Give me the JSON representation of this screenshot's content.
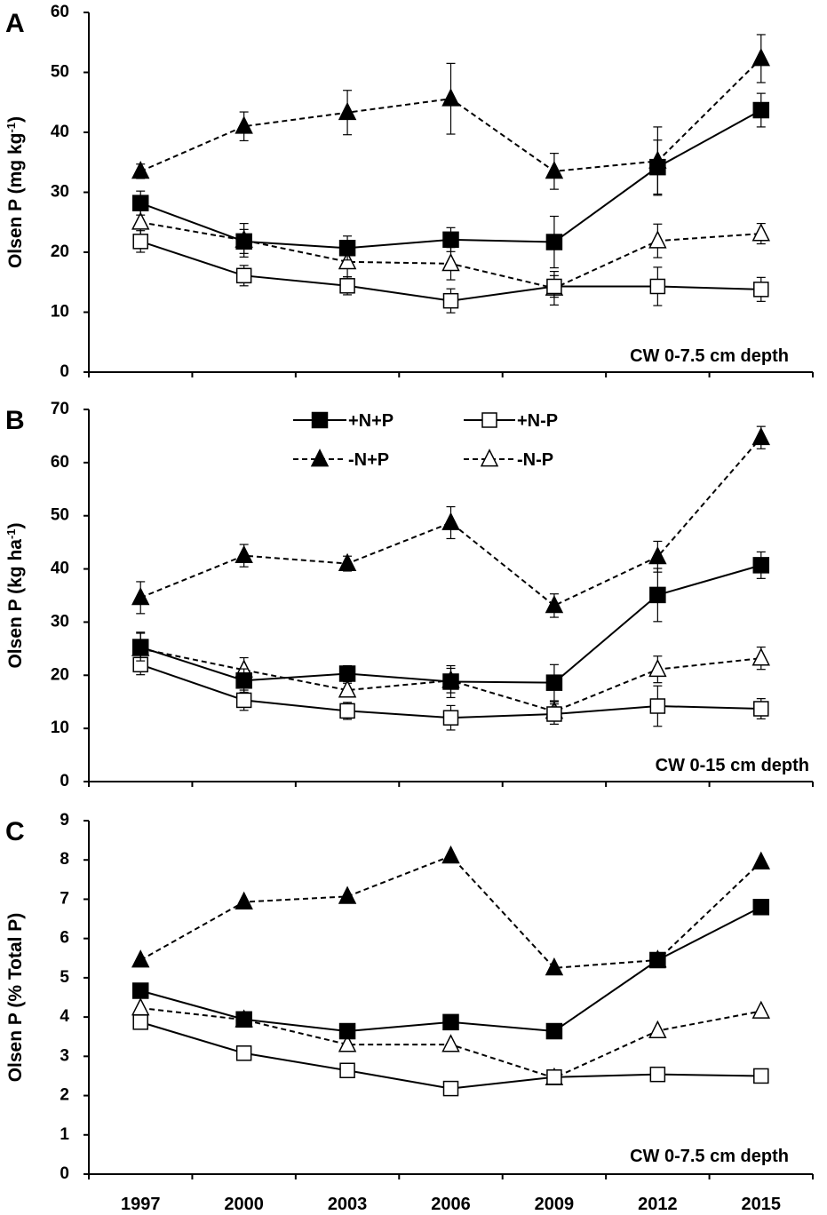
{
  "chart_data": {
    "type": "line",
    "x": [
      "1997",
      "2000",
      "2003",
      "2006",
      "2009",
      "2012",
      "2015"
    ],
    "legend": [
      {
        "key": "+N+P",
        "label": "+N+P",
        "marker": "square",
        "filled": true,
        "dashed": false
      },
      {
        "key": "+N-P",
        "label": "+N-P",
        "marker": "square",
        "filled": false,
        "dashed": false
      },
      {
        "key": "-N+P",
        "label": "-N+P",
        "marker": "triangle",
        "filled": true,
        "dashed": true
      },
      {
        "key": "-N-P",
        "label": "-N-P",
        "marker": "triangle",
        "filled": false,
        "dashed": true
      }
    ],
    "panels": [
      {
        "letter": "A",
        "ylabel_main": "Olsen P (mg kg",
        "ylabel_sup": "-1",
        "ylabel_end": ")",
        "ylim": [
          0,
          60
        ],
        "yticks": [
          "0",
          "10",
          "20",
          "30",
          "40",
          "50",
          "60"
        ],
        "annotation": "CW 0-7.5 cm depth",
        "show_legend": false,
        "series": [
          {
            "key": "+N+P",
            "values": [
              28.2,
              21.8,
              20.7,
              22.1,
              21.7,
              34.2,
              43.7
            ],
            "errors": [
              2.0,
              2.0,
              2.0,
              2.0,
              4.3,
              4.5,
              2.8
            ]
          },
          {
            "key": "+N-P",
            "values": [
              21.8,
              16.1,
              14.4,
              11.9,
              14.3,
              14.3,
              13.8
            ],
            "errors": [
              1.8,
              1.7,
              1.5,
              2.0,
              1.8,
              3.2,
              2.0
            ]
          },
          {
            "key": "-N+P",
            "values": [
              33.5,
              41.0,
              43.3,
              45.6,
              33.5,
              35.2,
              52.3
            ],
            "errors": [
              1.2,
              2.4,
              3.7,
              5.9,
              3.0,
              5.7,
              4.0
            ]
          },
          {
            "key": "-N-P",
            "values": [
              25.0,
              22.0,
              18.4,
              18.1,
              14.0,
              21.9,
              23.1
            ],
            "errors": [
              3.8,
              2.8,
              2.5,
              2.7,
              2.8,
              2.8,
              1.7
            ]
          }
        ]
      },
      {
        "letter": "B",
        "ylabel_main": "Olsen P (kg ha",
        "ylabel_sup": "-1",
        "ylabel_end": ")",
        "ylim": [
          0,
          70
        ],
        "yticks": [
          "0",
          "10",
          "20",
          "30",
          "40",
          "50",
          "60",
          "70"
        ],
        "annotation": "CW 0-15 cm depth",
        "show_legend": true,
        "series": [
          {
            "key": "+N+P",
            "values": [
              25.3,
              19.0,
              20.3,
              18.8,
              18.6,
              35.1,
              40.7
            ],
            "errors": [
              2.6,
              2.2,
              1.5,
              3.0,
              3.4,
              5.0,
              2.5
            ]
          },
          {
            "key": "+N-P",
            "values": [
              22.0,
              15.3,
              13.3,
              12.0,
              12.7,
              14.2,
              13.7
            ],
            "errors": [
              1.9,
              1.9,
              1.6,
              2.3,
              1.9,
              3.8,
              1.9
            ]
          },
          {
            "key": "-N+P",
            "values": [
              34.6,
              42.5,
              41.0,
              48.7,
              33.1,
              42.3,
              64.7
            ],
            "errors": [
              3.0,
              2.1,
              1.4,
              3.0,
              2.2,
              2.9,
              2.1
            ]
          },
          {
            "key": "-N-P",
            "values": [
              25.0,
              21.0,
              17.2,
              19.0,
              13.2,
              21.1,
              23.2
            ],
            "errors": [
              3.1,
              2.3,
              1.3,
              2.3,
              1.8,
              2.5,
              2.1
            ]
          }
        ]
      },
      {
        "letter": "C",
        "ylabel_main": "Olsen P (% Total P)",
        "ylabel_sup": "",
        "ylabel_end": "",
        "ylim": [
          0,
          9
        ],
        "yticks": [
          "0",
          "1",
          "2",
          "3",
          "4",
          "5",
          "6",
          "7",
          "8",
          "9"
        ],
        "annotation": "CW 0-7.5 cm depth",
        "show_legend": false,
        "series": [
          {
            "key": "+N+P",
            "values": [
              4.67,
              3.94,
              3.64,
              3.87,
              3.64,
              5.45,
              6.8
            ],
            "errors": []
          },
          {
            "key": "+N-P",
            "values": [
              3.87,
              3.08,
              2.64,
              2.18,
              2.47,
              2.54,
              2.5
            ],
            "errors": []
          },
          {
            "key": "-N+P",
            "values": [
              5.45,
              6.93,
              7.07,
              8.1,
              5.25,
              5.45,
              7.95
            ],
            "errors": []
          },
          {
            "key": "-N-P",
            "values": [
              4.23,
              3.93,
              3.3,
              3.3,
              2.45,
              3.65,
              4.15
            ],
            "errors": []
          }
        ]
      }
    ]
  }
}
